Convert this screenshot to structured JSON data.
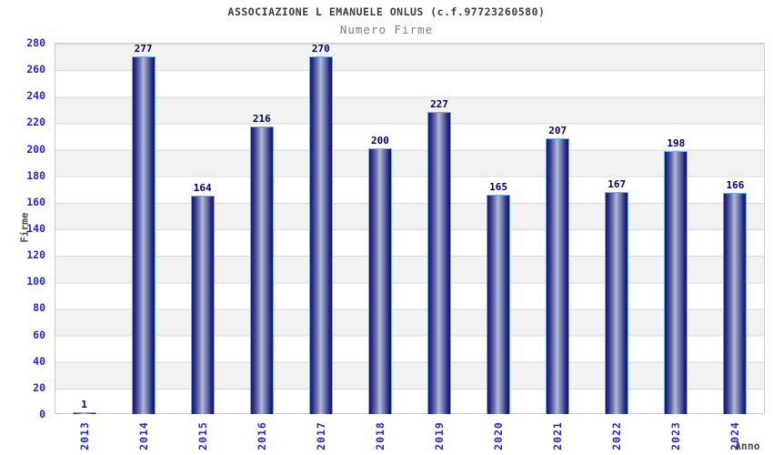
{
  "chart_data": {
    "type": "bar",
    "title": "ASSOCIAZIONE L EMANUELE ONLUS (c.f.97723260580)",
    "subtitle": "Numero Firme",
    "xlabel": "Anno",
    "ylabel": "Firme",
    "categories": [
      "2013",
      "2014",
      "2015",
      "2016",
      "2017",
      "2018",
      "2019",
      "2020",
      "2021",
      "2022",
      "2023",
      "2024"
    ],
    "values": [
      1,
      277,
      164,
      216,
      270,
      200,
      227,
      165,
      207,
      167,
      198,
      166
    ],
    "ylim": [
      0,
      280
    ],
    "ytick_step": 20,
    "grid": true,
    "legend": false,
    "band_colors": [
      "#f2f2f2",
      "#ffffff"
    ],
    "colors": {
      "title": "#3c3c3c",
      "subtitle": "#7d7d7d",
      "axis_tick_text": "#2626cc",
      "value_label": "#000066",
      "axis_title_text": "#4a4a4a",
      "bar_edge": "#16166e",
      "bar_center": "#b4bad8",
      "bar_border": "#74aae8",
      "plot_border": "#cccccc",
      "gridline": "#d9d9d9"
    }
  }
}
